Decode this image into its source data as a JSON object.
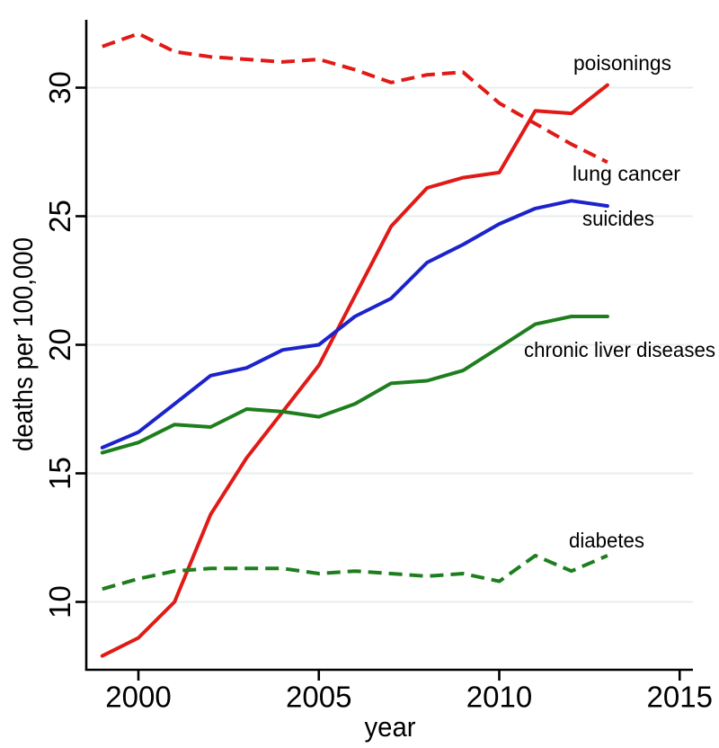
{
  "chart_data": {
    "type": "line",
    "title": "",
    "xlabel": "year",
    "ylabel": "deaths per 100,000",
    "x": [
      1999,
      2000,
      2001,
      2002,
      2003,
      2004,
      2005,
      2006,
      2007,
      2008,
      2009,
      2010,
      2011,
      2012,
      2013
    ],
    "x_tick_values": [
      2000,
      2005,
      2010,
      2015
    ],
    "x_tick_labels": [
      "2000",
      "2005",
      "2010",
      "2015"
    ],
    "y_tick_values": [
      10,
      15,
      20,
      25,
      30
    ],
    "y_tick_labels": [
      "10",
      "15",
      "20",
      "25",
      "30"
    ],
    "xlim": [
      1998.55,
      2015.4
    ],
    "ylim": [
      7.35,
      32.65
    ],
    "grid": "horizontal gridlines at y ticks",
    "legend_position": "labels at right end of each line",
    "series": [
      {
        "name": "poisonings",
        "style": "solid",
        "color": "#e01a16",
        "values": [
          7.9,
          8.6,
          10.0,
          13.4,
          15.6,
          17.4,
          19.2,
          21.9,
          24.6,
          26.1,
          26.5,
          26.7,
          29.1,
          29.0,
          30.1
        ]
      },
      {
        "name": "lung cancer",
        "style": "dashed",
        "color": "#e01a16",
        "values": [
          31.6,
          32.1,
          31.4,
          31.2,
          31.1,
          31.0,
          31.1,
          30.7,
          30.2,
          30.5,
          30.6,
          29.4,
          28.6,
          27.8,
          27.1
        ]
      },
      {
        "name": "suicides",
        "style": "solid",
        "color": "#1c23cb",
        "values": [
          16.0,
          16.6,
          17.7,
          18.8,
          19.1,
          19.8,
          20.0,
          21.1,
          21.8,
          23.2,
          23.9,
          24.7,
          25.3,
          25.6,
          25.4
        ]
      },
      {
        "name": "chronic liver diseases",
        "style": "solid",
        "color": "#1e7e1e",
        "values": [
          15.8,
          16.2,
          16.9,
          16.8,
          17.5,
          17.4,
          17.2,
          17.7,
          18.5,
          18.6,
          19.0,
          19.9,
          20.8,
          21.1,
          21.1
        ]
      },
      {
        "name": "diabetes",
        "style": "dashed",
        "color": "#1e7e1e",
        "values": [
          10.5,
          10.9,
          11.2,
          11.3,
          11.3,
          11.3,
          11.1,
          11.2,
          11.1,
          11.0,
          11.1,
          10.8,
          11.8,
          11.2,
          11.8
        ]
      }
    ],
    "colors": {
      "red_series": "#e01a16",
      "blue_series": "#1c23cb",
      "green_series": "#1e7e1e",
      "gridline": "#e9edee",
      "axis": "#000000",
      "background": "#ffffff"
    }
  }
}
